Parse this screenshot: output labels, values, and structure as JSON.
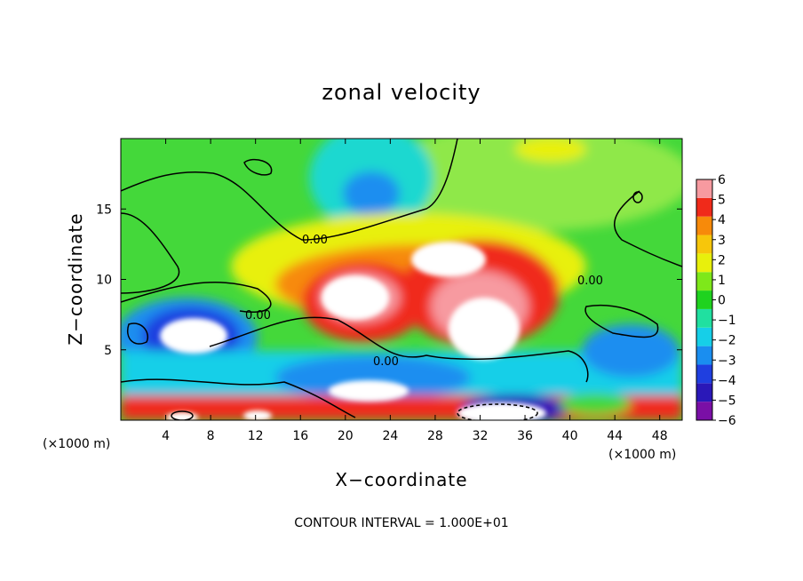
{
  "chart_data": {
    "type": "heatmap",
    "title": "zonal velocity",
    "xlabel": "X−coordinate",
    "ylabel": "Z−coordinate",
    "x_unit_label": "(×1000 m)",
    "xlim": [
      0,
      50
    ],
    "ylim": [
      0,
      20
    ],
    "x_ticks": [
      4,
      8,
      12,
      16,
      20,
      24,
      28,
      32,
      36,
      40,
      44,
      48
    ],
    "y_ticks": [
      5,
      10,
      15
    ],
    "colorbar": {
      "levels": [
        -6,
        -5,
        -4,
        -3,
        -2,
        -1,
        0,
        1,
        2,
        3,
        4,
        5,
        6
      ],
      "colors": [
        "#7a0fa6",
        "#2a18b8",
        "#1f3fe0",
        "#1a8ef0",
        "#16cfe8",
        "#20e0a0",
        "#1fd21f",
        "#7ee81a",
        "#e8f00c",
        "#f7c60b",
        "#f78a0a",
        "#f02a1a",
        "#f79aa0"
      ]
    },
    "contour_label": "0.00",
    "contour_interval_text": "CONTOUR INTERVAL = 1.000E+01"
  },
  "colors": {
    "background": "#ffffff",
    "field_base": "#44d83a",
    "contour": "#000000"
  }
}
